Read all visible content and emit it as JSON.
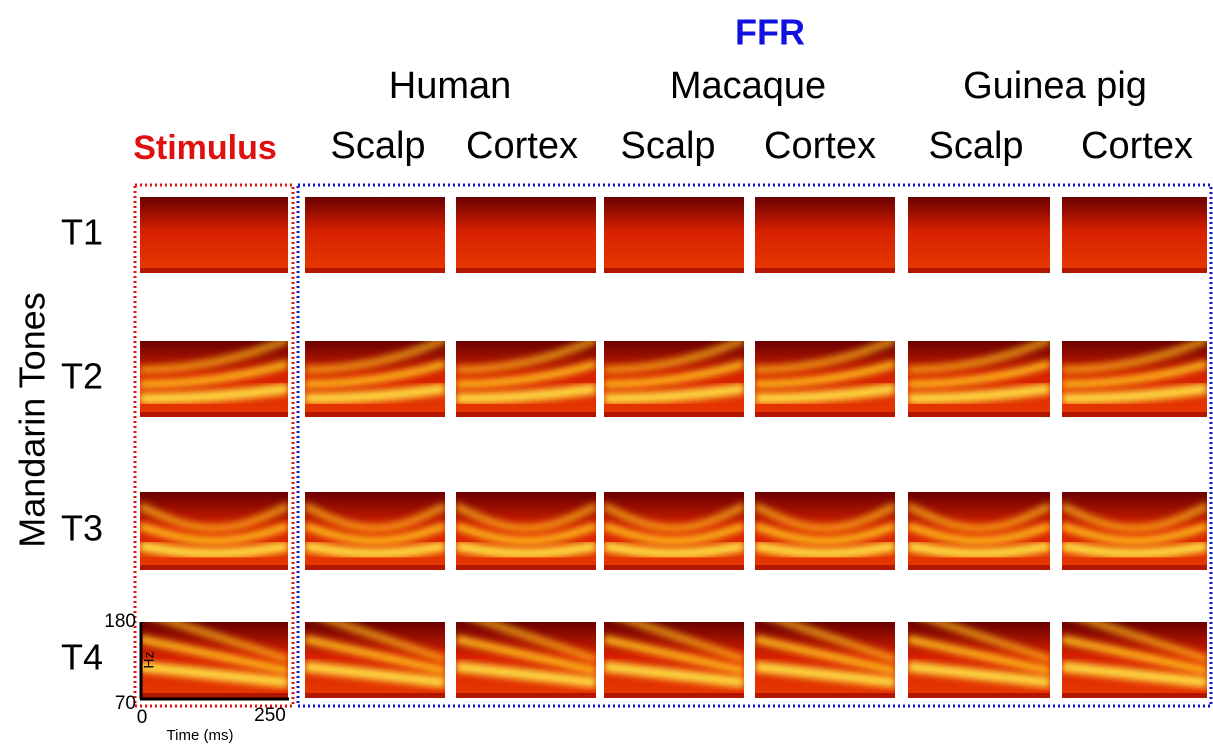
{
  "title": "FFR",
  "species": [
    "Human",
    "Macaque",
    "Guinea pig"
  ],
  "stimulus_label": "Stimulus",
  "sites": [
    "Scalp",
    "Cortex",
    "Scalp",
    "Cortex",
    "Scalp",
    "Cortex"
  ],
  "row_axis_label": "Mandarin Tones",
  "tones": [
    "T1",
    "T2",
    "T3",
    "T4"
  ],
  "axis": {
    "y_max": 180,
    "y_min": 70,
    "y_unit": "Hz",
    "x_min": 0,
    "x_max": 250,
    "x_label": "Time (ms)"
  }
}
